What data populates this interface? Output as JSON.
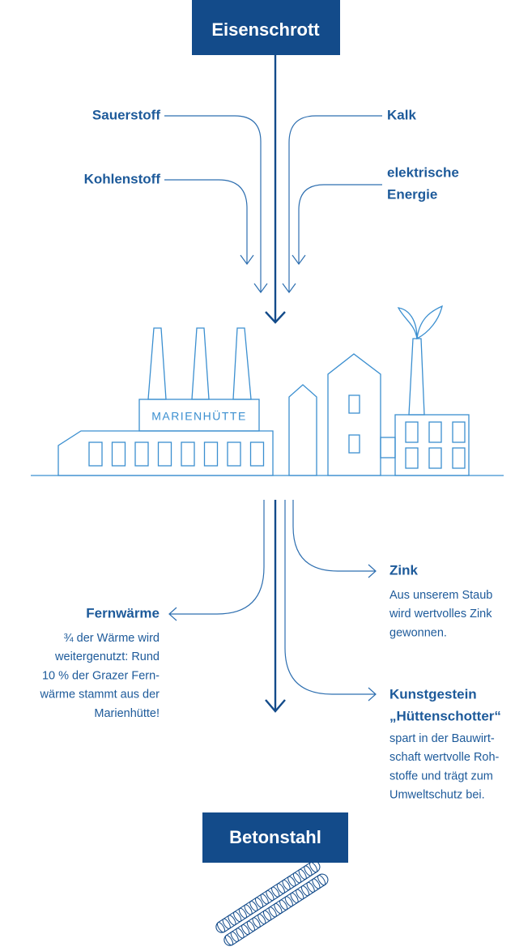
{
  "header": {
    "title": "Eisenschrott"
  },
  "inputs": {
    "sauerstoff": "Sauerstoff",
    "kohlenstoff": "Kohlenstoff",
    "kalk": "Kalk",
    "energie": [
      "elektrische",
      "Energie"
    ]
  },
  "factory": {
    "label": "MARIENHÜTTE"
  },
  "outputs": [
    {
      "title": [
        "Zink"
      ],
      "description": [
        "Aus unserem Staub",
        "wird wertvolles Zink",
        "gewonnen."
      ]
    },
    {
      "title": [
        "Fernwärme"
      ],
      "description": [
        "¾ der Wärme wird",
        "weitergenutzt: Rund",
        "10 % der Grazer Fern-",
        "wärme stammt aus der",
        "Marienhütte!"
      ]
    },
    {
      "title": [
        "Kunstgestein",
        "„Hüttenschotter“"
      ],
      "description": [
        "spart in der Bauwirt-",
        "schaft wertvolle Roh-",
        "stoffe und trägt zum",
        "Umweltschutz bei."
      ]
    }
  ],
  "product": {
    "title": "Betonstahl"
  }
}
